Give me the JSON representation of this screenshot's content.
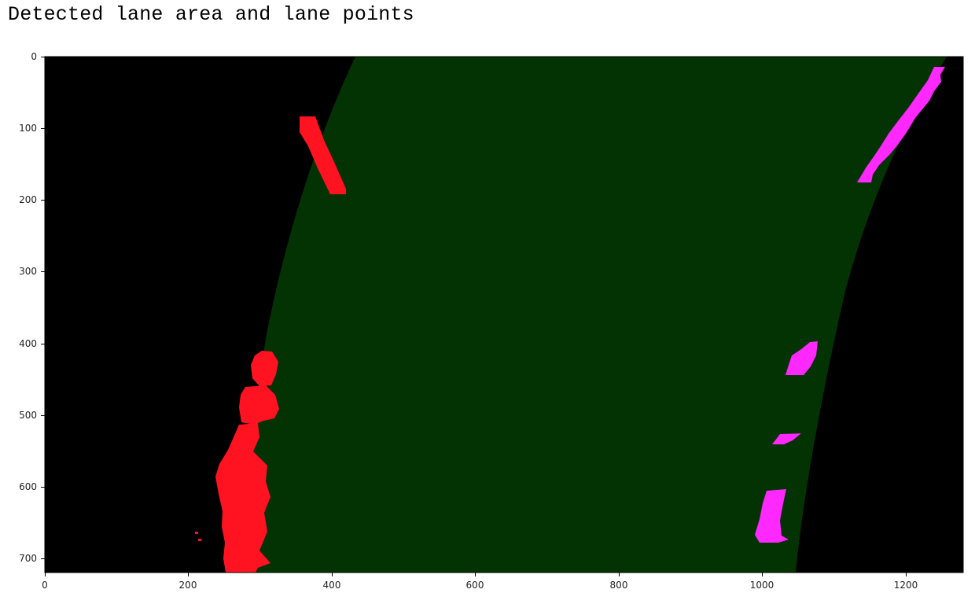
{
  "title": "Detected lane area and lane points",
  "image_plot": {
    "x_ticks": [
      "0",
      "200",
      "400",
      "600",
      "800",
      "1000",
      "1200"
    ],
    "y_ticks": [
      "0",
      "100",
      "200",
      "300",
      "400",
      "500",
      "600",
      "700"
    ],
    "image_width": 1280,
    "image_height": 720,
    "colors": {
      "background": "#000000",
      "lane_area": "#033303",
      "left_lane_points": "#ff1320",
      "right_lane_points": "#ff28ff"
    }
  }
}
